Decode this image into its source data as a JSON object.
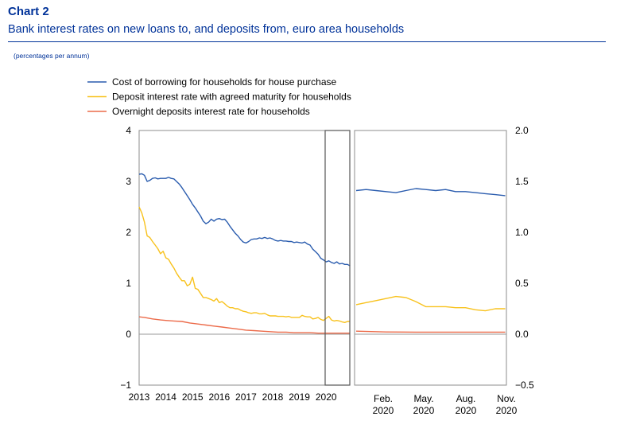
{
  "header": {
    "chart_number": "Chart 2",
    "title": "Bank interest rates on new loans to, and deposits from, euro area households",
    "unit": "(percentages per annum)"
  },
  "chart_data": {
    "type": "line",
    "series": [
      {
        "name": "Cost of borrowing for households for house purchase",
        "color": "#2a5cae",
        "left_panel": [
          [
            2013.0,
            3.14
          ],
          [
            2013.1,
            3.15
          ],
          [
            2013.2,
            3.12
          ],
          [
            2013.3,
            3.0
          ],
          [
            2013.4,
            3.02
          ],
          [
            2013.5,
            3.06
          ],
          [
            2013.6,
            3.07
          ],
          [
            2013.7,
            3.05
          ],
          [
            2013.8,
            3.06
          ],
          [
            2013.9,
            3.06
          ],
          [
            2014.0,
            3.06
          ],
          [
            2014.1,
            3.08
          ],
          [
            2014.2,
            3.06
          ],
          [
            2014.3,
            3.05
          ],
          [
            2014.4,
            3.0
          ],
          [
            2014.5,
            2.95
          ],
          [
            2014.6,
            2.88
          ],
          [
            2014.7,
            2.8
          ],
          [
            2014.8,
            2.72
          ],
          [
            2014.9,
            2.64
          ],
          [
            2015.0,
            2.55
          ],
          [
            2015.1,
            2.48
          ],
          [
            2015.2,
            2.4
          ],
          [
            2015.3,
            2.32
          ],
          [
            2015.4,
            2.22
          ],
          [
            2015.5,
            2.17
          ],
          [
            2015.6,
            2.2
          ],
          [
            2015.7,
            2.26
          ],
          [
            2015.8,
            2.22
          ],
          [
            2015.9,
            2.26
          ],
          [
            2016.0,
            2.27
          ],
          [
            2016.1,
            2.25
          ],
          [
            2016.2,
            2.26
          ],
          [
            2016.3,
            2.2
          ],
          [
            2016.4,
            2.12
          ],
          [
            2016.5,
            2.05
          ],
          [
            2016.6,
            1.98
          ],
          [
            2016.7,
            1.93
          ],
          [
            2016.8,
            1.86
          ],
          [
            2016.9,
            1.81
          ],
          [
            2017.0,
            1.79
          ],
          [
            2017.1,
            1.82
          ],
          [
            2017.2,
            1.86
          ],
          [
            2017.3,
            1.87
          ],
          [
            2017.4,
            1.87
          ],
          [
            2017.5,
            1.89
          ],
          [
            2017.6,
            1.88
          ],
          [
            2017.7,
            1.9
          ],
          [
            2017.8,
            1.88
          ],
          [
            2017.9,
            1.89
          ],
          [
            2018.0,
            1.87
          ],
          [
            2018.1,
            1.84
          ],
          [
            2018.2,
            1.83
          ],
          [
            2018.3,
            1.84
          ],
          [
            2018.4,
            1.83
          ],
          [
            2018.5,
            1.83
          ],
          [
            2018.6,
            1.82
          ],
          [
            2018.7,
            1.82
          ],
          [
            2018.8,
            1.8
          ],
          [
            2018.9,
            1.81
          ],
          [
            2019.0,
            1.8
          ],
          [
            2019.1,
            1.79
          ],
          [
            2019.2,
            1.81
          ],
          [
            2019.3,
            1.77
          ],
          [
            2019.4,
            1.75
          ],
          [
            2019.5,
            1.67
          ],
          [
            2019.6,
            1.62
          ],
          [
            2019.7,
            1.57
          ],
          [
            2019.8,
            1.49
          ],
          [
            2019.9,
            1.46
          ],
          [
            2020.0,
            1.42
          ],
          [
            2020.1,
            1.44
          ],
          [
            2020.2,
            1.41
          ],
          [
            2020.3,
            1.39
          ],
          [
            2020.4,
            1.42
          ],
          [
            2020.5,
            1.38
          ],
          [
            2020.6,
            1.39
          ],
          [
            2020.7,
            1.37
          ],
          [
            2020.8,
            1.37
          ],
          [
            2020.9,
            1.34
          ]
        ],
        "right_panel": [
          [
            0,
            1.41
          ],
          [
            1,
            1.42
          ],
          [
            2,
            1.41
          ],
          [
            3,
            1.4
          ],
          [
            4,
            1.39
          ],
          [
            5,
            1.41
          ],
          [
            6,
            1.43
          ],
          [
            7,
            1.42
          ],
          [
            8,
            1.41
          ],
          [
            9,
            1.42
          ],
          [
            10,
            1.4
          ],
          [
            11,
            1.4
          ],
          [
            12,
            1.39
          ],
          [
            13,
            1.38
          ],
          [
            14,
            1.37
          ],
          [
            15,
            1.36
          ]
        ]
      },
      {
        "name": "Deposit interest rate with agreed maturity for households",
        "color": "#f8c21d",
        "left_panel": [
          [
            2013.0,
            2.5
          ],
          [
            2013.1,
            2.38
          ],
          [
            2013.2,
            2.2
          ],
          [
            2013.3,
            1.93
          ],
          [
            2013.4,
            1.9
          ],
          [
            2013.5,
            1.82
          ],
          [
            2013.6,
            1.75
          ],
          [
            2013.7,
            1.68
          ],
          [
            2013.8,
            1.58
          ],
          [
            2013.9,
            1.63
          ],
          [
            2014.0,
            1.5
          ],
          [
            2014.1,
            1.47
          ],
          [
            2014.2,
            1.38
          ],
          [
            2014.3,
            1.3
          ],
          [
            2014.4,
            1.2
          ],
          [
            2014.5,
            1.12
          ],
          [
            2014.6,
            1.05
          ],
          [
            2014.7,
            1.05
          ],
          [
            2014.8,
            0.95
          ],
          [
            2014.9,
            0.98
          ],
          [
            2015.0,
            1.12
          ],
          [
            2015.1,
            0.9
          ],
          [
            2015.2,
            0.88
          ],
          [
            2015.3,
            0.8
          ],
          [
            2015.4,
            0.72
          ],
          [
            2015.5,
            0.72
          ],
          [
            2015.6,
            0.7
          ],
          [
            2015.7,
            0.68
          ],
          [
            2015.8,
            0.65
          ],
          [
            2015.9,
            0.7
          ],
          [
            2016.0,
            0.62
          ],
          [
            2016.1,
            0.64
          ],
          [
            2016.2,
            0.6
          ],
          [
            2016.3,
            0.55
          ],
          [
            2016.4,
            0.52
          ],
          [
            2016.5,
            0.52
          ],
          [
            2016.6,
            0.5
          ],
          [
            2016.7,
            0.5
          ],
          [
            2016.8,
            0.47
          ],
          [
            2016.9,
            0.45
          ],
          [
            2017.0,
            0.44
          ],
          [
            2017.1,
            0.42
          ],
          [
            2017.2,
            0.41
          ],
          [
            2017.3,
            0.42
          ],
          [
            2017.4,
            0.42
          ],
          [
            2017.5,
            0.4
          ],
          [
            2017.6,
            0.4
          ],
          [
            2017.7,
            0.41
          ],
          [
            2017.8,
            0.38
          ],
          [
            2017.9,
            0.36
          ],
          [
            2018.0,
            0.36
          ],
          [
            2018.1,
            0.36
          ],
          [
            2018.2,
            0.35
          ],
          [
            2018.3,
            0.35
          ],
          [
            2018.4,
            0.35
          ],
          [
            2018.5,
            0.34
          ],
          [
            2018.6,
            0.35
          ],
          [
            2018.7,
            0.33
          ],
          [
            2018.8,
            0.33
          ],
          [
            2018.9,
            0.33
          ],
          [
            2019.0,
            0.33
          ],
          [
            2019.1,
            0.37
          ],
          [
            2019.2,
            0.35
          ],
          [
            2019.3,
            0.34
          ],
          [
            2019.4,
            0.34
          ],
          [
            2019.5,
            0.3
          ],
          [
            2019.6,
            0.31
          ],
          [
            2019.7,
            0.33
          ],
          [
            2019.8,
            0.29
          ],
          [
            2019.9,
            0.27
          ],
          [
            2020.0,
            0.31
          ],
          [
            2020.1,
            0.35
          ],
          [
            2020.2,
            0.28
          ],
          [
            2020.3,
            0.26
          ],
          [
            2020.4,
            0.27
          ],
          [
            2020.5,
            0.26
          ],
          [
            2020.6,
            0.24
          ],
          [
            2020.7,
            0.23
          ],
          [
            2020.8,
            0.25
          ],
          [
            2020.9,
            0.25
          ]
        ],
        "right_panel": [
          [
            0,
            0.29
          ],
          [
            1,
            0.31
          ],
          [
            2,
            0.33
          ],
          [
            3,
            0.35
          ],
          [
            4,
            0.37
          ],
          [
            5,
            0.36
          ],
          [
            6,
            0.32
          ],
          [
            7,
            0.27
          ],
          [
            8,
            0.27
          ],
          [
            9,
            0.27
          ],
          [
            10,
            0.26
          ],
          [
            11,
            0.26
          ],
          [
            12,
            0.24
          ],
          [
            13,
            0.23
          ],
          [
            14,
            0.25
          ],
          [
            15,
            0.25
          ]
        ]
      },
      {
        "name": "Overnight deposits interest rate for households",
        "color": "#ec6b4a",
        "left_panel": [
          [
            2013.0,
            0.34
          ],
          [
            2013.2,
            0.33
          ],
          [
            2013.5,
            0.3
          ],
          [
            2013.8,
            0.28
          ],
          [
            2014.0,
            0.27
          ],
          [
            2014.3,
            0.26
          ],
          [
            2014.6,
            0.25
          ],
          [
            2014.9,
            0.22
          ],
          [
            2015.2,
            0.2
          ],
          [
            2015.5,
            0.18
          ],
          [
            2015.8,
            0.16
          ],
          [
            2016.1,
            0.14
          ],
          [
            2016.4,
            0.12
          ],
          [
            2016.7,
            0.1
          ],
          [
            2017.0,
            0.08
          ],
          [
            2017.3,
            0.07
          ],
          [
            2017.6,
            0.06
          ],
          [
            2017.9,
            0.05
          ],
          [
            2018.2,
            0.04
          ],
          [
            2018.5,
            0.04
          ],
          [
            2018.8,
            0.03
          ],
          [
            2019.1,
            0.03
          ],
          [
            2019.4,
            0.03
          ],
          [
            2019.7,
            0.02
          ],
          [
            2020.0,
            0.02
          ],
          [
            2020.3,
            0.02
          ],
          [
            2020.6,
            0.02
          ],
          [
            2020.9,
            0.02
          ]
        ],
        "right_panel": [
          [
            0,
            0.03
          ],
          [
            3,
            0.022
          ],
          [
            6,
            0.02
          ],
          [
            9,
            0.02
          ],
          [
            12,
            0.02
          ],
          [
            15,
            0.02
          ]
        ]
      }
    ],
    "left_axis": {
      "ylim": [
        -1,
        4
      ],
      "ticks": [
        "4",
        "3",
        "2",
        "1",
        "0",
        "-1"
      ],
      "tick_values": [
        4,
        3,
        2,
        1,
        0,
        -1
      ]
    },
    "left_x_ticks": [
      "2013",
      "2014",
      "2015",
      "2016",
      "2017",
      "2018",
      "2019",
      "2020"
    ],
    "right_axis": {
      "ylim": [
        -0.5,
        2.0
      ],
      "ticks": [
        "2.0",
        "1.5",
        "1.0",
        "0.5",
        "0.0",
        "-0.5"
      ],
      "tick_values": [
        2.0,
        1.5,
        1.0,
        0.5,
        0.0,
        -0.5
      ]
    },
    "right_x_ticks": [
      {
        "top": "Feb.",
        "bottom": "2020"
      },
      {
        "top": "May.",
        "bottom": "2020"
      },
      {
        "top": "Aug.",
        "bottom": "2020"
      },
      {
        "top": "Nov.",
        "bottom": "2020"
      }
    ],
    "highlight": "2020",
    "legend_position": "top-left"
  }
}
